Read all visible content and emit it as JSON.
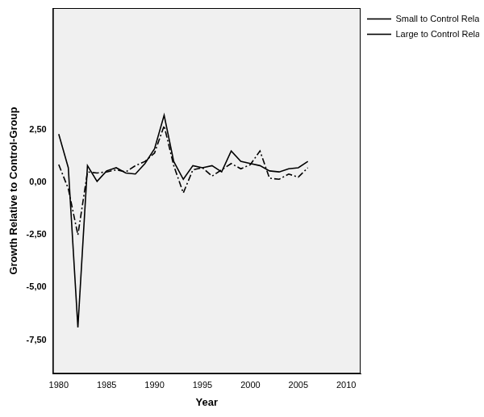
{
  "chart_data": {
    "type": "line",
    "x_label": "Year",
    "y_label": "Growth Relative to Control-Group",
    "x": [
      1980,
      1981,
      1982,
      1983,
      1984,
      1985,
      1986,
      1987,
      1988,
      1989,
      1990,
      1991,
      1992,
      1993,
      1994,
      1995,
      1996,
      1997,
      1998,
      1999,
      2000,
      2001,
      2002,
      2003,
      2004,
      2005,
      2006
    ],
    "series": [
      {
        "name": "Small to Control Relative Growth",
        "color": "#000000",
        "line_style": "solid",
        "marker": "none",
        "values": [
          2.3,
          0.7,
          -6.9,
          0.8,
          0.05,
          0.55,
          0.7,
          0.45,
          0.4,
          0.9,
          1.6,
          3.2,
          1.0,
          0.15,
          0.8,
          0.7,
          0.8,
          0.5,
          1.5,
          1.0,
          0.9,
          0.8,
          0.55,
          0.5,
          0.65,
          0.7,
          1.0
        ]
      },
      {
        "name": "Large to Control Relative Growth",
        "color": "#000000",
        "line_style": "dashdot",
        "marker": "none",
        "values": [
          0.85,
          -0.3,
          -2.5,
          0.5,
          0.45,
          0.5,
          0.6,
          0.5,
          0.8,
          1.0,
          1.4,
          2.7,
          0.8,
          -0.5,
          0.6,
          0.7,
          0.3,
          0.6,
          0.9,
          0.65,
          0.85,
          1.5,
          0.2,
          0.15,
          0.4,
          0.25,
          0.7
        ]
      }
    ],
    "xlim": [
      1979.4,
      2011.5
    ],
    "xticks": [
      1980,
      1985,
      1990,
      1995,
      2000,
      2005,
      2010
    ],
    "ylim": [
      -9.1,
      8.3
    ],
    "yticks": [
      {
        "value": -7.5,
        "label": "-7,50"
      },
      {
        "value": -5,
        "label": "-5,00"
      },
      {
        "value": -2.5,
        "label": "-2,50"
      },
      {
        "value": 0,
        "label": "0,00"
      },
      {
        "value": 2.5,
        "label": "2,50"
      }
    ],
    "grid": false,
    "legend": "right"
  }
}
